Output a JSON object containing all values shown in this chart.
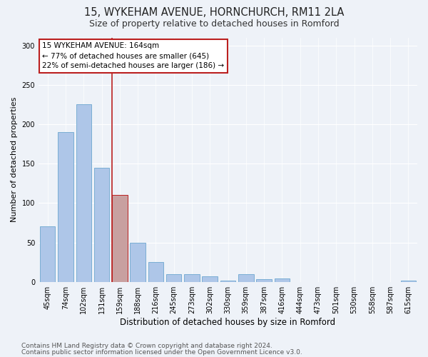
{
  "title1": "15, WYKEHAM AVENUE, HORNCHURCH, RM11 2LA",
  "title2": "Size of property relative to detached houses in Romford",
  "xlabel": "Distribution of detached houses by size in Romford",
  "ylabel": "Number of detached properties",
  "categories": [
    "45sqm",
    "74sqm",
    "102sqm",
    "131sqm",
    "159sqm",
    "188sqm",
    "216sqm",
    "245sqm",
    "273sqm",
    "302sqm",
    "330sqm",
    "359sqm",
    "387sqm",
    "416sqm",
    "444sqm",
    "473sqm",
    "501sqm",
    "530sqm",
    "558sqm",
    "587sqm",
    "615sqm"
  ],
  "values": [
    70,
    190,
    225,
    145,
    110,
    50,
    25,
    10,
    10,
    7,
    2,
    10,
    3,
    4,
    0,
    0,
    0,
    0,
    0,
    0,
    2
  ],
  "bar_color": "#aec6e8",
  "bar_edge_color": "#7aaed4",
  "highlight_bar_index": 4,
  "highlight_bar_color": "#c8a0a0",
  "highlight_bar_edge_color": "#bb2020",
  "vline_color": "#bb2020",
  "annotation_lines": [
    "15 WYKEHAM AVENUE: 164sqm",
    "← 77% of detached houses are smaller (645)",
    "22% of semi-detached houses are larger (186) →"
  ],
  "annotation_box_color": "#ffffff",
  "annotation_box_edge_color": "#bb2020",
  "ylim": [
    0,
    310
  ],
  "yticks": [
    0,
    50,
    100,
    150,
    200,
    250,
    300
  ],
  "footer1": "Contains HM Land Registry data © Crown copyright and database right 2024.",
  "footer2": "Contains public sector information licensed under the Open Government Licence v3.0.",
  "bg_color": "#eef2f8",
  "title1_fontsize": 10.5,
  "title2_fontsize": 9,
  "xlabel_fontsize": 8.5,
  "ylabel_fontsize": 8,
  "tick_fontsize": 7,
  "footer_fontsize": 6.5,
  "annotation_fontsize": 7.5
}
